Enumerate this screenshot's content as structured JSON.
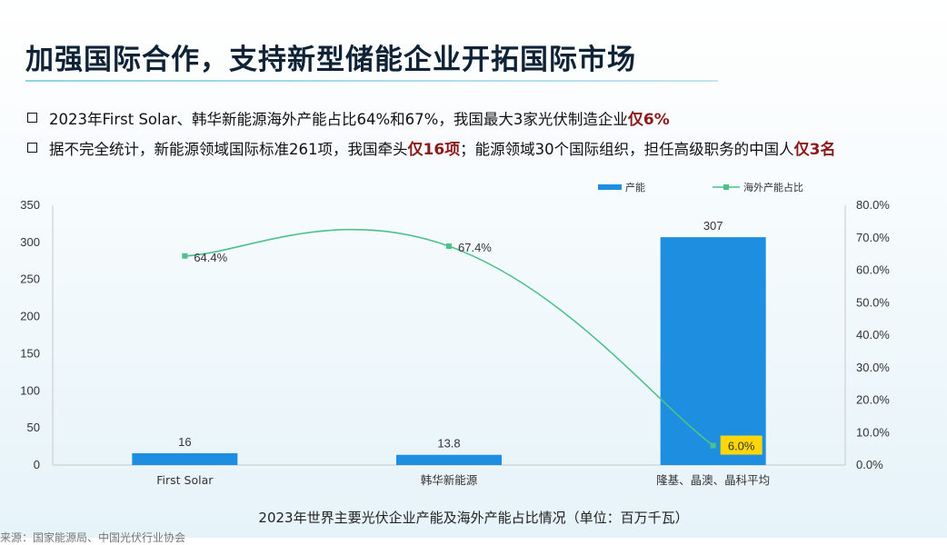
{
  "header": {
    "title": "加强国际合作，支持新型储能企业开拓国际市场"
  },
  "bullets": [
    {
      "text": "2023年First Solar、韩华新能源海外产能占比64%和67%，我国最大3家光伏制造企业",
      "highlight": "仅6%",
      "tail": ""
    },
    {
      "text": "据不完全统计，新能源领域国际标准261项，我国牵头",
      "highlight": "仅16项",
      "tail": "；能源领域30个国际组织，担任高级职务的中国人",
      "highlight2": "仅3名"
    }
  ],
  "colors": {
    "bar": "#1e8fe0",
    "line": "#4cc28a",
    "highlight_label_bg": "#ffd60a",
    "emphasis_text": "#8b1a1a"
  },
  "chart_data": {
    "type": "bar",
    "categories": [
      "First Solar",
      "韩华新能源",
      "隆基、晶澳、晶科平均"
    ],
    "series": [
      {
        "name": "产能",
        "type": "bar",
        "axis": "left",
        "values": [
          16,
          13.8,
          307
        ],
        "labels": [
          "16",
          "13.8",
          "307"
        ]
      },
      {
        "name": "海外产能占比",
        "type": "line",
        "axis": "right",
        "values": [
          64.4,
          67.4,
          6.0
        ],
        "labels": [
          "64.4%",
          "67.4%",
          "6.0%"
        ]
      }
    ],
    "y_left": {
      "min": 0,
      "max": 350,
      "step": 50,
      "ticks": [
        "0",
        "50",
        "100",
        "150",
        "200",
        "250",
        "300",
        "350"
      ]
    },
    "y_right": {
      "min": 0,
      "max": 80,
      "step": 10,
      "ticks": [
        "0.0%",
        "10.0%",
        "20.0%",
        "30.0%",
        "40.0%",
        "50.0%",
        "60.0%",
        "70.0%",
        "80.0%"
      ]
    },
    "legend_position": "top-right",
    "grid": false,
    "caption": "2023年世界主要光伏企业产能及海外产能占比情况（单位：百万千瓦）"
  },
  "footer": {
    "source": "来源：国家能源局、中国光伏行业协会"
  }
}
